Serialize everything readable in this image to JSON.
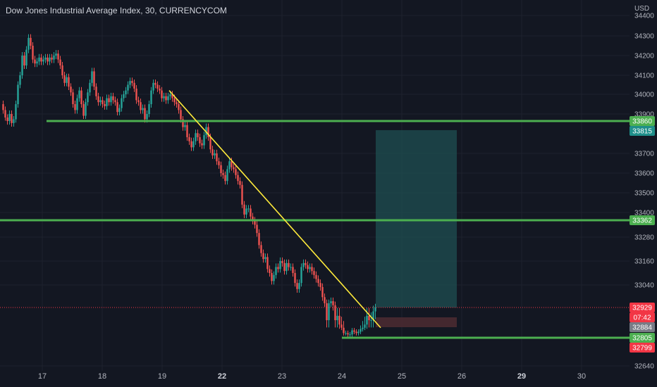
{
  "header": {
    "title": "Dow Jones Industrial Average Index, 30, CURRENCYCOM",
    "currency": "USD"
  },
  "colors": {
    "bg": "#131722",
    "up": "#26a69a",
    "down": "#ef5350",
    "level": "#4caf50",
    "trend": "#ffeb3b",
    "target_zone": "#1f4f52",
    "stop_zone": "#4a2a31",
    "price_line": "#f23645",
    "grid": "#1e222d"
  },
  "chart_data": {
    "type": "candlestick",
    "title": "Dow Jones Industrial Average Index, 30, CURRENCYCOM",
    "price_axis": {
      "unit": "USD",
      "ticks": [
        34400,
        34300,
        34200,
        34100,
        34000,
        33900,
        33700,
        33600,
        33500,
        33400,
        33280,
        33160,
        33040,
        32640
      ]
    },
    "time_axis": {
      "ticks": [
        {
          "label": "17",
          "bold": false
        },
        {
          "label": "18",
          "bold": false
        },
        {
          "label": "19",
          "bold": false
        },
        {
          "label": "22",
          "bold": true
        },
        {
          "label": "23",
          "bold": false
        },
        {
          "label": "24",
          "bold": false
        },
        {
          "label": "25",
          "bold": false
        },
        {
          "label": "26",
          "bold": false
        },
        {
          "label": "29",
          "bold": true
        },
        {
          "label": "30",
          "bold": false
        }
      ]
    },
    "price_path": [
      [
        0,
        33950
      ],
      [
        3,
        33920
      ],
      [
        6,
        33880
      ],
      [
        9,
        33860
      ],
      [
        12,
        33900
      ],
      [
        15,
        33850
      ],
      [
        18,
        33870
      ],
      [
        21,
        33950
      ],
      [
        24,
        34050
      ],
      [
        27,
        34100
      ],
      [
        30,
        34200
      ],
      [
        33,
        34150
      ],
      [
        36,
        34230
      ],
      [
        39,
        34290
      ],
      [
        42,
        34250
      ],
      [
        45,
        34180
      ],
      [
        48,
        34160
      ],
      [
        51,
        34170
      ],
      [
        54,
        34190
      ],
      [
        57,
        34170
      ],
      [
        60,
        34180
      ],
      [
        63,
        34190
      ],
      [
        66,
        34170
      ],
      [
        69,
        34190
      ],
      [
        72,
        34180
      ],
      [
        75,
        34200
      ],
      [
        78,
        34210
      ],
      [
        81,
        34180
      ],
      [
        84,
        34150
      ],
      [
        87,
        34100
      ],
      [
        90,
        34060
      ],
      [
        93,
        34090
      ],
      [
        96,
        34040
      ],
      [
        99,
        34010
      ],
      [
        102,
        33950
      ],
      [
        105,
        33920
      ],
      [
        108,
        33980
      ],
      [
        111,
        34020
      ],
      [
        114,
        33950
      ],
      [
        117,
        33890
      ],
      [
        120,
        33960
      ],
      [
        123,
        34010
      ],
      [
        126,
        34060
      ],
      [
        129,
        34120
      ],
      [
        132,
        34040
      ],
      [
        135,
        33990
      ],
      [
        138,
        33960
      ],
      [
        141,
        33970
      ],
      [
        144,
        33950
      ],
      [
        147,
        33940
      ],
      [
        150,
        33980
      ],
      [
        153,
        33960
      ],
      [
        156,
        33990
      ],
      [
        159,
        33970
      ],
      [
        162,
        33960
      ],
      [
        165,
        33910
      ],
      [
        168,
        33930
      ],
      [
        171,
        33980
      ],
      [
        174,
        34000
      ],
      [
        177,
        34020
      ],
      [
        180,
        34050
      ],
      [
        183,
        34070
      ],
      [
        186,
        34060
      ],
      [
        189,
        34030
      ],
      [
        192,
        33970
      ],
      [
        195,
        33960
      ],
      [
        198,
        33920
      ],
      [
        201,
        33930
      ],
      [
        204,
        33870
      ],
      [
        207,
        33900
      ],
      [
        210,
        33950
      ],
      [
        213,
        34020
      ],
      [
        216,
        34060
      ],
      [
        219,
        34050
      ],
      [
        222,
        34030
      ],
      [
        225,
        34020
      ],
      [
        228,
        33980
      ],
      [
        231,
        33990
      ],
      [
        234,
        33970
      ],
      [
        237,
        33990
      ],
      [
        240,
        34000
      ],
      [
        243,
        33980
      ],
      [
        246,
        33960
      ],
      [
        249,
        33950
      ],
      [
        252,
        33920
      ],
      [
        255,
        33870
      ],
      [
        258,
        33830
      ],
      [
        261,
        33840
      ],
      [
        264,
        33780
      ],
      [
        267,
        33760
      ],
      [
        270,
        33730
      ],
      [
        273,
        33760
      ],
      [
        276,
        33800
      ],
      [
        279,
        33780
      ],
      [
        282,
        33750
      ],
      [
        285,
        33740
      ],
      [
        288,
        33790
      ],
      [
        291,
        33830
      ],
      [
        294,
        33780
      ],
      [
        297,
        33720
      ],
      [
        300,
        33690
      ],
      [
        303,
        33700
      ],
      [
        306,
        33660
      ],
      [
        309,
        33640
      ],
      [
        312,
        33600
      ],
      [
        315,
        33590
      ],
      [
        318,
        33560
      ],
      [
        321,
        33620
      ],
      [
        324,
        33660
      ],
      [
        327,
        33630
      ],
      [
        330,
        33620
      ],
      [
        333,
        33590
      ],
      [
        336,
        33560
      ],
      [
        339,
        33540
      ],
      [
        342,
        33440
      ],
      [
        345,
        33390
      ],
      [
        348,
        33420
      ],
      [
        351,
        33420
      ],
      [
        354,
        33380
      ],
      [
        357,
        33360
      ],
      [
        360,
        33340
      ],
      [
        363,
        33300
      ],
      [
        366,
        33240
      ],
      [
        369,
        33200
      ],
      [
        372,
        33170
      ],
      [
        375,
        33180
      ],
      [
        378,
        33120
      ],
      [
        381,
        33100
      ],
      [
        384,
        33060
      ],
      [
        387,
        33090
      ],
      [
        390,
        33130
      ],
      [
        393,
        33120
      ],
      [
        396,
        33160
      ],
      [
        399,
        33150
      ],
      [
        402,
        33110
      ],
      [
        405,
        33150
      ],
      [
        408,
        33130
      ],
      [
        411,
        33130
      ],
      [
        414,
        33100
      ],
      [
        417,
        33050
      ],
      [
        420,
        33020
      ],
      [
        423,
        33050
      ],
      [
        426,
        33130
      ],
      [
        429,
        33150
      ],
      [
        432,
        33140
      ],
      [
        435,
        33120
      ],
      [
        438,
        33130
      ],
      [
        441,
        33110
      ],
      [
        444,
        33090
      ],
      [
        447,
        33070
      ],
      [
        450,
        33050
      ],
      [
        453,
        33030
      ],
      [
        456,
        32980
      ],
      [
        459,
        32950
      ],
      [
        462,
        32900
      ],
      [
        465,
        32950
      ],
      [
        468,
        32960
      ],
      [
        471,
        32940
      ],
      [
        474,
        32900
      ],
      [
        477,
        32910
      ],
      [
        480,
        32890
      ],
      [
        483,
        32880
      ],
      [
        486,
        32840
      ],
      [
        489,
        32840
      ],
      [
        492,
        32830
      ],
      [
        495,
        32830
      ],
      [
        498,
        32860
      ],
      [
        501,
        32850
      ],
      [
        504,
        32840
      ],
      [
        507,
        32850
      ],
      [
        510,
        32870
      ],
      [
        513,
        32880
      ],
      [
        516,
        32890
      ],
      [
        519,
        32910
      ],
      [
        522,
        32900
      ],
      [
        525,
        32900
      ],
      [
        528,
        32920
      ],
      [
        531,
        32929
      ]
    ],
    "levels": [
      {
        "price": 33860,
        "label": "33860",
        "kind": "resistance"
      },
      {
        "price": 33362,
        "label": "33362",
        "kind": "resistance"
      },
      {
        "price": 32805,
        "label": "32805",
        "kind": "support"
      }
    ],
    "trendline": {
      "from": [
        240,
        34020
      ],
      "to": [
        540,
        32880
      ]
    },
    "position": {
      "entry": 32884,
      "target": 33815,
      "stop": 32929
    },
    "badges": [
      {
        "text": "33860",
        "color": "#4caf50"
      },
      {
        "text": "33815",
        "color": "#1f8f8a"
      },
      {
        "text": "33362",
        "color": "#4caf50"
      },
      {
        "text": "32929",
        "color": "#f23645"
      },
      {
        "text": "07:42",
        "color": "#f23645"
      },
      {
        "text": "32884",
        "color": "#787b86"
      },
      {
        "text": "32805",
        "color": "#4caf50"
      },
      {
        "text": "32799",
        "color": "#f23645"
      }
    ]
  }
}
